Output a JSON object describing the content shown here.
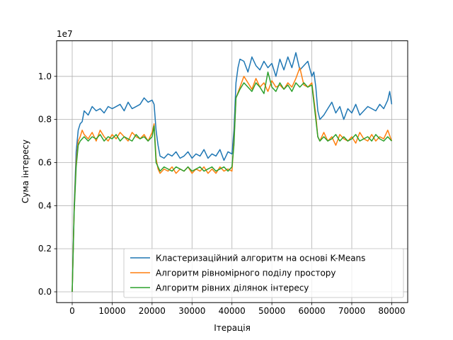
{
  "chart_data": {
    "type": "line",
    "title": "",
    "xlabel": "Ітерація",
    "ylabel": "Сума інтересу",
    "y_offset_label": "1e7",
    "xlim": [
      -3900,
      84000
    ],
    "ylim": [
      -0.05,
      1.165
    ],
    "y_scale_multiplier": 10000000,
    "grid": true,
    "legend_position": "lower-right",
    "x_ticks": [
      0,
      10000,
      20000,
      30000,
      40000,
      50000,
      60000,
      70000,
      80000
    ],
    "y_ticks": [
      0.0,
      0.2,
      0.4,
      0.6,
      0.8,
      1.0
    ],
    "x_tick_labels": [
      "0",
      "10000",
      "20000",
      "30000",
      "40000",
      "50000",
      "60000",
      "70000",
      "80000"
    ],
    "y_tick_labels": [
      "0.0",
      "0.2",
      "0.4",
      "0.6",
      "0.8",
      "1.0"
    ],
    "series": [
      {
        "name": "Кластеризаційний алгоритм на основі K-Means",
        "color": "#1f77b4",
        "x": [
          0,
          500,
          1000,
          1500,
          2000,
          2500,
          3000,
          3500,
          4000,
          5000,
          6000,
          7000,
          8000,
          9000,
          10000,
          11000,
          12000,
          13000,
          14000,
          15000,
          16000,
          17000,
          18000,
          19000,
          20000,
          20500,
          21000,
          21500,
          22000,
          23000,
          24000,
          25000,
          26000,
          27000,
          28000,
          29000,
          30000,
          31000,
          32000,
          33000,
          34000,
          35000,
          36000,
          37000,
          38000,
          39000,
          40000,
          40500,
          41000,
          41500,
          42000,
          43000,
          44000,
          45000,
          46000,
          47000,
          48000,
          49000,
          50000,
          51000,
          52000,
          53000,
          54000,
          55000,
          56000,
          57000,
          58000,
          59000,
          60000,
          60500,
          61000,
          61500,
          62000,
          63000,
          64000,
          65000,
          66000,
          67000,
          68000,
          69000,
          70000,
          71000,
          72000,
          73000,
          74000,
          75000,
          76000,
          77000,
          78000,
          79000,
          79500,
          80000
        ],
        "y": [
          0.0,
          0.4,
          0.65,
          0.75,
          0.78,
          0.79,
          0.84,
          0.83,
          0.82,
          0.86,
          0.84,
          0.85,
          0.83,
          0.86,
          0.85,
          0.86,
          0.87,
          0.84,
          0.88,
          0.85,
          0.86,
          0.87,
          0.9,
          0.88,
          0.89,
          0.87,
          0.75,
          0.68,
          0.63,
          0.62,
          0.64,
          0.63,
          0.65,
          0.62,
          0.63,
          0.65,
          0.62,
          0.64,
          0.63,
          0.66,
          0.62,
          0.64,
          0.63,
          0.66,
          0.61,
          0.65,
          0.64,
          0.75,
          0.97,
          1.04,
          1.08,
          1.07,
          1.02,
          1.09,
          1.05,
          1.03,
          1.07,
          1.04,
          1.06,
          1.0,
          1.08,
          1.03,
          1.09,
          1.04,
          1.11,
          1.03,
          1.05,
          1.07,
          1.0,
          1.02,
          0.95,
          0.84,
          0.8,
          0.82,
          0.85,
          0.88,
          0.83,
          0.86,
          0.8,
          0.85,
          0.83,
          0.87,
          0.82,
          0.84,
          0.86,
          0.85,
          0.84,
          0.87,
          0.85,
          0.89,
          0.93,
          0.87
        ]
      },
      {
        "name": "Алгоритм рівномірного поділу простору",
        "color": "#ff7f0e",
        "x": [
          0,
          500,
          1000,
          1500,
          2000,
          2500,
          3000,
          4000,
          5000,
          6000,
          7000,
          8000,
          9000,
          10000,
          11000,
          12000,
          13000,
          14000,
          15000,
          16000,
          17000,
          18000,
          19000,
          20000,
          20500,
          21000,
          21500,
          22000,
          23000,
          24000,
          25000,
          26000,
          27000,
          28000,
          29000,
          30000,
          31000,
          32000,
          33000,
          34000,
          35000,
          36000,
          37000,
          38000,
          39000,
          40000,
          40500,
          41000,
          42000,
          43000,
          44000,
          45000,
          46000,
          47000,
          48000,
          49000,
          50000,
          51000,
          52000,
          53000,
          54000,
          55000,
          56000,
          57000,
          58000,
          59000,
          60000,
          61000,
          61500,
          62000,
          63000,
          64000,
          65000,
          66000,
          67000,
          68000,
          69000,
          70000,
          71000,
          72000,
          73000,
          74000,
          75000,
          76000,
          77000,
          78000,
          79000,
          80000
        ],
        "y": [
          0.0,
          0.38,
          0.6,
          0.7,
          0.72,
          0.75,
          0.73,
          0.71,
          0.74,
          0.7,
          0.75,
          0.72,
          0.7,
          0.73,
          0.71,
          0.74,
          0.72,
          0.7,
          0.74,
          0.72,
          0.71,
          0.73,
          0.7,
          0.74,
          0.78,
          0.62,
          0.57,
          0.55,
          0.57,
          0.56,
          0.58,
          0.55,
          0.57,
          0.56,
          0.58,
          0.55,
          0.57,
          0.56,
          0.58,
          0.55,
          0.57,
          0.55,
          0.58,
          0.56,
          0.57,
          0.56,
          0.7,
          0.9,
          0.95,
          1.0,
          0.97,
          0.94,
          0.99,
          0.95,
          0.97,
          0.93,
          0.98,
          0.95,
          0.96,
          0.94,
          0.97,
          0.95,
          0.99,
          1.04,
          0.96,
          0.95,
          0.97,
          0.82,
          0.72,
          0.7,
          0.74,
          0.7,
          0.72,
          0.68,
          0.73,
          0.71,
          0.7,
          0.72,
          0.69,
          0.74,
          0.71,
          0.7,
          0.73,
          0.7,
          0.72,
          0.71,
          0.75,
          0.7
        ]
      },
      {
        "name": "Алгоритм рівних ділянок інтересу",
        "color": "#2ca02c",
        "x": [
          0,
          500,
          1000,
          1500,
          2000,
          2500,
          3000,
          4000,
          5000,
          6000,
          7000,
          8000,
          9000,
          10000,
          11000,
          12000,
          13000,
          14000,
          15000,
          16000,
          17000,
          18000,
          19000,
          20000,
          20500,
          21000,
          21500,
          22000,
          23000,
          24000,
          25000,
          26000,
          27000,
          28000,
          29000,
          30000,
          31000,
          32000,
          33000,
          34000,
          35000,
          36000,
          37000,
          38000,
          39000,
          40000,
          40500,
          41000,
          42000,
          43000,
          44000,
          45000,
          46000,
          47000,
          48000,
          49000,
          50000,
          51000,
          52000,
          53000,
          54000,
          55000,
          56000,
          57000,
          58000,
          59000,
          60000,
          61000,
          61500,
          62000,
          63000,
          64000,
          65000,
          66000,
          67000,
          68000,
          69000,
          70000,
          71000,
          72000,
          73000,
          74000,
          75000,
          76000,
          77000,
          78000,
          79000,
          80000
        ],
        "y": [
          0.0,
          0.37,
          0.58,
          0.68,
          0.7,
          0.71,
          0.72,
          0.7,
          0.72,
          0.71,
          0.73,
          0.7,
          0.72,
          0.71,
          0.73,
          0.7,
          0.72,
          0.71,
          0.7,
          0.73,
          0.71,
          0.72,
          0.7,
          0.72,
          0.77,
          0.6,
          0.58,
          0.56,
          0.58,
          0.57,
          0.56,
          0.58,
          0.57,
          0.56,
          0.58,
          0.56,
          0.57,
          0.58,
          0.56,
          0.57,
          0.58,
          0.56,
          0.57,
          0.58,
          0.56,
          0.58,
          0.68,
          0.9,
          0.94,
          0.97,
          0.95,
          0.93,
          0.97,
          0.95,
          0.92,
          1.02,
          0.95,
          0.93,
          0.97,
          0.94,
          0.96,
          0.93,
          0.97,
          0.95,
          0.97,
          0.95,
          0.96,
          0.8,
          0.72,
          0.7,
          0.72,
          0.7,
          0.71,
          0.73,
          0.7,
          0.72,
          0.7,
          0.71,
          0.73,
          0.7,
          0.71,
          0.72,
          0.7,
          0.73,
          0.71,
          0.7,
          0.72,
          0.7
        ]
      }
    ]
  }
}
